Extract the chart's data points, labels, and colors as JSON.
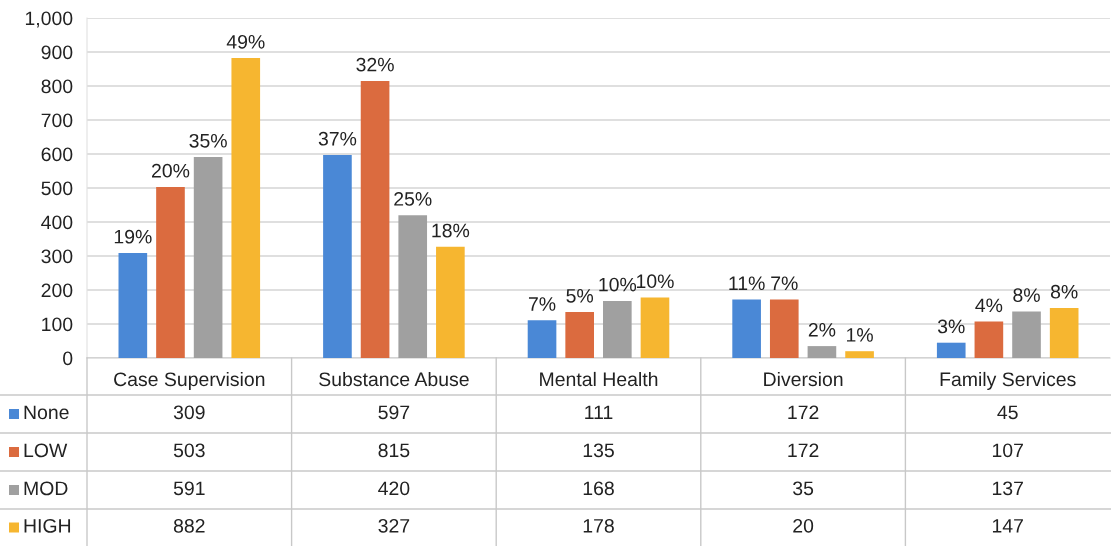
{
  "chart_data": {
    "type": "bar",
    "categories": [
      "Case Supervision",
      "Substance Abuse",
      "Mental Health",
      "Diversion",
      "Family Services"
    ],
    "series": [
      {
        "name": "None",
        "color": "#4a88d6",
        "values": [
          309,
          597,
          111,
          172,
          45
        ]
      },
      {
        "name": "LOW",
        "color": "#db6b3f",
        "values": [
          503,
          815,
          135,
          172,
          107
        ]
      },
      {
        "name": "MOD",
        "color": "#a0a0a0",
        "values": [
          591,
          420,
          168,
          35,
          137
        ]
      },
      {
        "name": "HIGH",
        "color": "#f6b630",
        "values": [
          882,
          327,
          178,
          20,
          147
        ]
      }
    ],
    "annotations": [
      "19%",
      "37%",
      "7%",
      "11%",
      "3%",
      "20%",
      "32%",
      "5%",
      "7%",
      "4%",
      "35%",
      "25%",
      "10%",
      "2%",
      "8%",
      "49%",
      "18%",
      "10%",
      "1%",
      "8%"
    ],
    "ylim": [
      0,
      1000
    ],
    "yticks": [
      0,
      100,
      200,
      300,
      400,
      500,
      600,
      700,
      800,
      900,
      {
        "value": 1000,
        "label": "1,000"
      }
    ],
    "grid": "y",
    "legend": "bottom left",
    "data_labels": true
  }
}
